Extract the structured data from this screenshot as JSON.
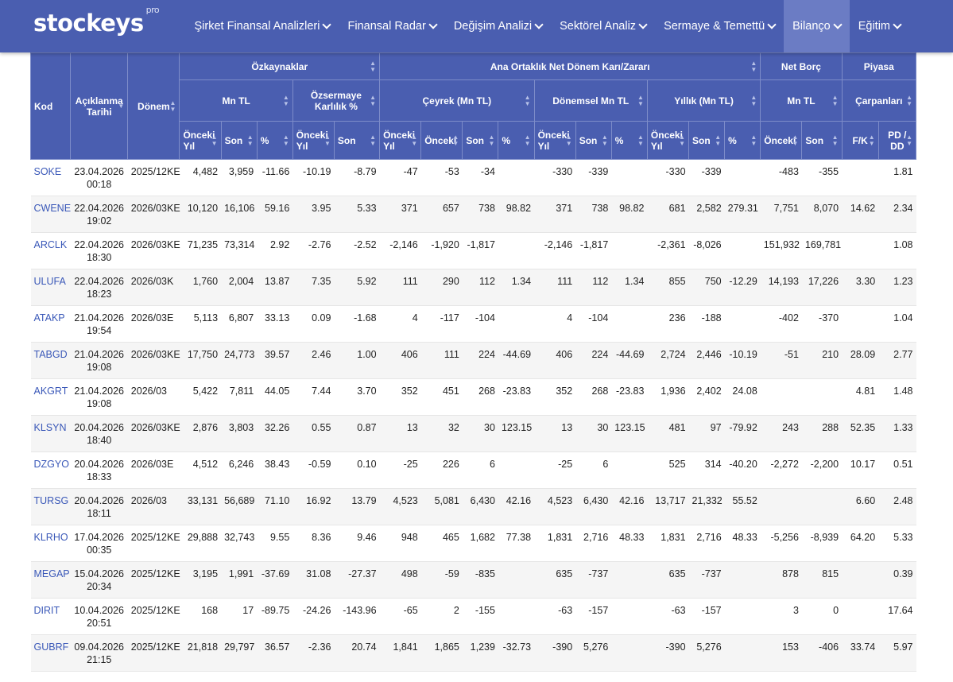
{
  "brand": {
    "name": "stockeys",
    "suffix": "pro"
  },
  "nav": [
    {
      "label": "Şirket Finansal Analizleri",
      "active": false
    },
    {
      "label": "Finansal Radar",
      "active": false
    },
    {
      "label": "Değişim Analizi",
      "active": false
    },
    {
      "label": "Sektörel Analiz",
      "active": false
    },
    {
      "label": "Sermaye & Temettü",
      "active": false
    },
    {
      "label": "Bilanço",
      "active": true
    },
    {
      "label": "Eğitim",
      "active": false
    }
  ],
  "headers": {
    "kod": "Kod",
    "aciklama": "Açıklanma Tarihi",
    "donem": "Dönem",
    "ozkaynaklar": "Özkaynaklar",
    "anaortaklik": "Ana Ortaklık Net Dönem Karı/Zararı",
    "netborc": "Net Borç",
    "piyasa": "Piyasa",
    "mntl": "Mn TL",
    "ozsermaye": "Özsermaye Karlılık %",
    "ceyrek": "Çeyrek (Mn TL)",
    "donemsel": "Dönemsel Mn TL",
    "yillik": "Yıllık (Mn TL)",
    "netborc_mntl": "Mn TL",
    "carpanlari": "Çarpanları",
    "onceki_yil": "Önceki Yıl",
    "onceki": "Önceki",
    "son": "Son",
    "pct": "%",
    "fk": "F/K",
    "pddd": "PD / DD"
  },
  "rows": [
    {
      "kod": "SOKE",
      "tarih": "23.04.2026",
      "saat": "00:18",
      "donem": "2025/12KE",
      "c": [
        "4,482",
        "3,959",
        "-11.66",
        "-10.19",
        "-8.79",
        "-47",
        "-53",
        "-34",
        "",
        "-330",
        "-339",
        "",
        "-330",
        "-339",
        "",
        "-483",
        "-355",
        "",
        "1.81"
      ]
    },
    {
      "kod": "CWENE",
      "tarih": "22.04.2026",
      "saat": "19:02",
      "donem": "2026/03KE",
      "c": [
        "10,120",
        "16,106",
        "59.16",
        "3.95",
        "5.33",
        "371",
        "657",
        "738",
        "98.82",
        "371",
        "738",
        "98.82",
        "681",
        "2,582",
        "279.31",
        "7,751",
        "8,070",
        "14.62",
        "2.34"
      ]
    },
    {
      "kod": "ARCLK",
      "tarih": "22.04.2026",
      "saat": "18:30",
      "donem": "2026/03KE",
      "c": [
        "71,235",
        "73,314",
        "2.92",
        "-2.76",
        "-2.52",
        "-2,146",
        "-1,920",
        "-1,817",
        "",
        "-2,146",
        "-1,817",
        "",
        "-2,361",
        "-8,026",
        "",
        "151,932",
        "169,781",
        "",
        "1.08"
      ]
    },
    {
      "kod": "ULUFA",
      "tarih": "22.04.2026",
      "saat": "18:23",
      "donem": "2026/03K",
      "c": [
        "1,760",
        "2,004",
        "13.87",
        "7.35",
        "5.92",
        "111",
        "290",
        "112",
        "1.34",
        "111",
        "112",
        "1.34",
        "855",
        "750",
        "-12.29",
        "14,193",
        "17,226",
        "3.30",
        "1.23"
      ]
    },
    {
      "kod": "ATAKP",
      "tarih": "21.04.2026",
      "saat": "19:54",
      "donem": "2026/03E",
      "c": [
        "5,113",
        "6,807",
        "33.13",
        "0.09",
        "-1.68",
        "4",
        "-117",
        "-104",
        "",
        "4",
        "-104",
        "",
        "236",
        "-188",
        "",
        "-402",
        "-370",
        "",
        "1.04"
      ]
    },
    {
      "kod": "TABGD",
      "tarih": "21.04.2026",
      "saat": "19:08",
      "donem": "2026/03KE",
      "c": [
        "17,750",
        "24,773",
        "39.57",
        "2.46",
        "1.00",
        "406",
        "111",
        "224",
        "-44.69",
        "406",
        "224",
        "-44.69",
        "2,724",
        "2,446",
        "-10.19",
        "-51",
        "210",
        "28.09",
        "2.77"
      ]
    },
    {
      "kod": "AKGRT",
      "tarih": "21.04.2026",
      "saat": "19:08",
      "donem": "2026/03",
      "c": [
        "5,422",
        "7,811",
        "44.05",
        "7.44",
        "3.70",
        "352",
        "451",
        "268",
        "-23.83",
        "352",
        "268",
        "-23.83",
        "1,936",
        "2,402",
        "24.08",
        "",
        "",
        "4.81",
        "1.48"
      ]
    },
    {
      "kod": "KLSYN",
      "tarih": "20.04.2026",
      "saat": "18:40",
      "donem": "2026/03KE",
      "c": [
        "2,876",
        "3,803",
        "32.26",
        "0.55",
        "0.87",
        "13",
        "32",
        "30",
        "123.15",
        "13",
        "30",
        "123.15",
        "481",
        "97",
        "-79.92",
        "243",
        "288",
        "52.35",
        "1.33"
      ]
    },
    {
      "kod": "DZGYO",
      "tarih": "20.04.2026",
      "saat": "18:33",
      "donem": "2026/03E",
      "c": [
        "4,512",
        "6,246",
        "38.43",
        "-0.59",
        "0.10",
        "-25",
        "226",
        "6",
        "",
        "-25",
        "6",
        "",
        "525",
        "314",
        "-40.20",
        "-2,272",
        "-2,200",
        "10.17",
        "0.51"
      ]
    },
    {
      "kod": "TURSG",
      "tarih": "20.04.2026",
      "saat": "18:11",
      "donem": "2026/03",
      "c": [
        "33,131",
        "56,689",
        "71.10",
        "16.92",
        "13.79",
        "4,523",
        "5,081",
        "6,430",
        "42.16",
        "4,523",
        "6,430",
        "42.16",
        "13,717",
        "21,332",
        "55.52",
        "",
        "",
        "6.60",
        "2.48"
      ]
    },
    {
      "kod": "KLRHO",
      "tarih": "17.04.2026",
      "saat": "00:35",
      "donem": "2025/12KE",
      "c": [
        "29,888",
        "32,743",
        "9.55",
        "8.36",
        "9.46",
        "948",
        "465",
        "1,682",
        "77.38",
        "1,831",
        "2,716",
        "48.33",
        "1,831",
        "2,716",
        "48.33",
        "-5,256",
        "-8,939",
        "64.20",
        "5.33"
      ]
    },
    {
      "kod": "MEGAP",
      "tarih": "15.04.2026",
      "saat": "20:34",
      "donem": "2025/12KE",
      "c": [
        "3,195",
        "1,991",
        "-37.69",
        "31.08",
        "-27.37",
        "498",
        "-59",
        "-835",
        "",
        "635",
        "-737",
        "",
        "635",
        "-737",
        "",
        "878",
        "815",
        "",
        "0.39"
      ]
    },
    {
      "kod": "DIRIT",
      "tarih": "10.04.2026",
      "saat": "20:51",
      "donem": "2025/12KE",
      "c": [
        "168",
        "17",
        "-89.75",
        "-24.26",
        "-143.96",
        "-65",
        "2",
        "-155",
        "",
        "-63",
        "-157",
        "",
        "-63",
        "-157",
        "",
        "3",
        "0",
        "",
        "17.64"
      ]
    },
    {
      "kod": "GUBRF",
      "tarih": "09.04.2026",
      "saat": "21:15",
      "donem": "2025/12KE",
      "c": [
        "21,818",
        "29,797",
        "36.57",
        "-2.36",
        "20.74",
        "1,841",
        "1,865",
        "1,239",
        "-32.73",
        "-390",
        "5,276",
        "",
        "-390",
        "5,276",
        "",
        "153",
        "-406",
        "33.74",
        "5.97"
      ]
    }
  ]
}
